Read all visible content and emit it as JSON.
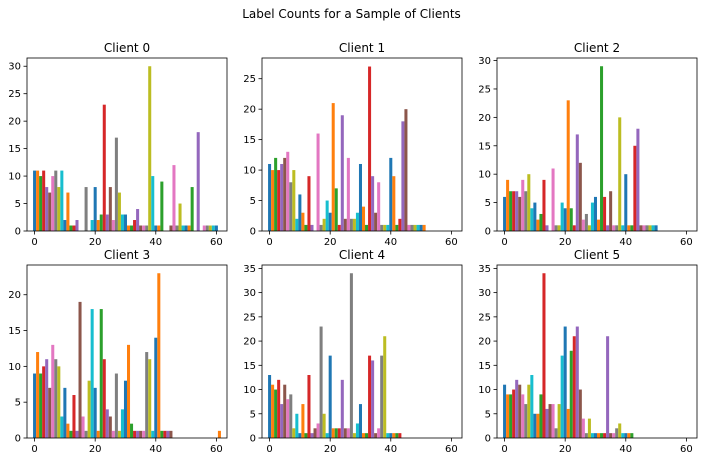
{
  "figure": {
    "suptitle": "Label Counts for a Sample of Clients"
  },
  "chart_data": {
    "type": "bar",
    "layout": "2x3 grid of histograms",
    "bins": [
      0,
      61
    ],
    "num_bars_per_bin": 62,
    "palette": [
      "#1f77b4",
      "#ff7f0e",
      "#2ca02c",
      "#d62728",
      "#9467bd",
      "#8c564b",
      "#e377c2",
      "#7f7f7f",
      "#bcbd22",
      "#17becf"
    ],
    "xlim": [
      -2.5,
      63.5
    ],
    "xticks": [
      0,
      20,
      40,
      60
    ],
    "panels": [
      {
        "title": "Client 0",
        "ylim": [
          0,
          31.5
        ],
        "yticks": [
          0,
          5,
          10,
          15,
          20,
          25,
          30
        ],
        "values": [
          11,
          11,
          10,
          11,
          8,
          7,
          10,
          11,
          8,
          11,
          2,
          7,
          1,
          1,
          2,
          0,
          0,
          8,
          0,
          2,
          8,
          2,
          3,
          23,
          3,
          8,
          2,
          17,
          7,
          3,
          3,
          1,
          1,
          2,
          4,
          1,
          1,
          1,
          30,
          10,
          1,
          1,
          9,
          0,
          0,
          1,
          12,
          1,
          5,
          1,
          1,
          1,
          8,
          0,
          18,
          0,
          1,
          1,
          1,
          1,
          1,
          0
        ]
      },
      {
        "title": "Client 1",
        "ylim": [
          0,
          28.4
        ],
        "yticks": [
          0,
          5,
          10,
          15,
          20,
          25
        ],
        "values": [
          11,
          10,
          12,
          10,
          11,
          12,
          13,
          8,
          10,
          2,
          6,
          3,
          1,
          9,
          1,
          0,
          16,
          1,
          2,
          5,
          3,
          21,
          7,
          1,
          19,
          2,
          12,
          2,
          2,
          3,
          11,
          4,
          1,
          27,
          9,
          3,
          8,
          1,
          1,
          1,
          12,
          9,
          1,
          2,
          18,
          20,
          1,
          1,
          1,
          1,
          1,
          1,
          0,
          0,
          0,
          0,
          0,
          0,
          0,
          0,
          0,
          0
        ]
      },
      {
        "title": "Client 2",
        "ylim": [
          0,
          30.45
        ],
        "yticks": [
          0,
          5,
          10,
          15,
          20,
          25,
          30
        ],
        "values": [
          6,
          9,
          7,
          7,
          7,
          6,
          9,
          7,
          10,
          4,
          5,
          2,
          3,
          9,
          1,
          0,
          11,
          1,
          1,
          5,
          4,
          23,
          4,
          1,
          17,
          12,
          2,
          3,
          1,
          5,
          6,
          2,
          29,
          6,
          1,
          7,
          1,
          1,
          20,
          1,
          10,
          1,
          1,
          15,
          18,
          1,
          1,
          1,
          1,
          1,
          1,
          0,
          0,
          0,
          0,
          0,
          0,
          0,
          0,
          0,
          0,
          0
        ]
      },
      {
        "title": "Client 3",
        "ylim": [
          0,
          24.15
        ],
        "yticks": [
          0,
          5,
          10,
          15,
          20
        ],
        "values": [
          9,
          12,
          9,
          10,
          11,
          7,
          13,
          11,
          10,
          3,
          7,
          2,
          1,
          6,
          1,
          19,
          3,
          1,
          8,
          18,
          7,
          1,
          18,
          11,
          4,
          3,
          1,
          9,
          1,
          4,
          8,
          13,
          2,
          1,
          1,
          1,
          1,
          12,
          11,
          1,
          14,
          23,
          1,
          1,
          1,
          1,
          0,
          0,
          0,
          0,
          0,
          0,
          0,
          0,
          0,
          0,
          0,
          0,
          0,
          0,
          0,
          1
        ]
      },
      {
        "title": "Client 4",
        "ylim": [
          0,
          35.7
        ],
        "yticks": [
          0,
          5,
          10,
          15,
          20,
          25,
          30,
          35
        ],
        "values": [
          13,
          11,
          10,
          12,
          7,
          11,
          8,
          9,
          2,
          5,
          1,
          7,
          1,
          13,
          1,
          2,
          3,
          23,
          5,
          1,
          17,
          2,
          2,
          2,
          12,
          2,
          2,
          34,
          1,
          3,
          7,
          1,
          1,
          17,
          16,
          1,
          2,
          17,
          21,
          1,
          1,
          1,
          1,
          1,
          0,
          0,
          0,
          0,
          0,
          0,
          0,
          0,
          0,
          0,
          0,
          0,
          0,
          0,
          0,
          0,
          0,
          0
        ]
      },
      {
        "title": "Client 5",
        "ylim": [
          0,
          35.7
        ],
        "yticks": [
          0,
          5,
          10,
          15,
          20,
          25,
          30,
          35
        ],
        "values": [
          11,
          9,
          9,
          10,
          12,
          11,
          9,
          7,
          11,
          13,
          5,
          5,
          9,
          34,
          6,
          7,
          7,
          2,
          7,
          17,
          23,
          6,
          18,
          21,
          23,
          10,
          4,
          1,
          4,
          1,
          1,
          1,
          1,
          1,
          21,
          1,
          1,
          2,
          3,
          1,
          1,
          1,
          1,
          0,
          0,
          0,
          0,
          0,
          0,
          0,
          0,
          0,
          0,
          0,
          0,
          0,
          0,
          0,
          0,
          0,
          0,
          0
        ]
      }
    ]
  }
}
